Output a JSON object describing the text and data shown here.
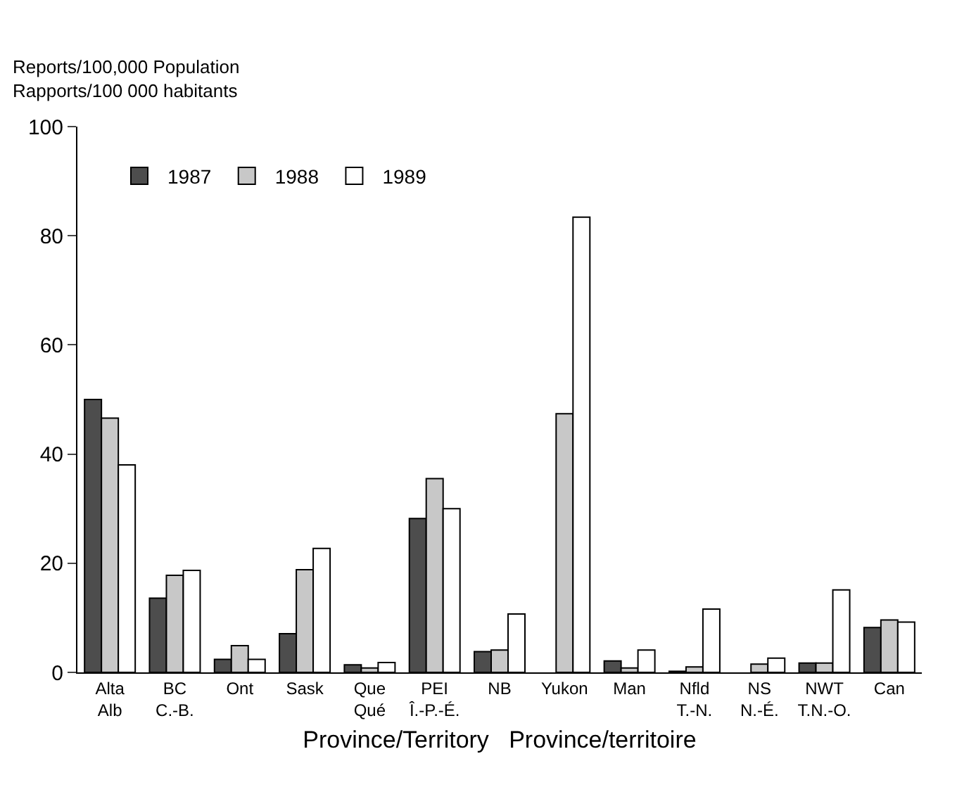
{
  "chart_data": {
    "type": "bar",
    "ylabel": "Reports/100,000 Population\nRapports/100 000 habitants",
    "xlabel": "Province/Territory   Province/territoire",
    "categories": [
      "Alta\nAlb",
      "BC\nC.-B.",
      "Ont",
      "Sask",
      "Que\nQué",
      "PEI\nÎ.-P.-É.",
      "NB",
      "Yukon",
      "Man",
      "Nfld\nT.-N.",
      "NS\nN.-É.",
      "NWT\nT.N.-O.",
      "Can"
    ],
    "series": [
      {
        "name": "1987",
        "color": "#4d4d4d",
        "values": [
          50.0,
          13.6,
          2.4,
          7.1,
          1.4,
          28.2,
          3.8,
          null,
          2.1,
          0.2,
          null,
          1.7,
          8.2
        ]
      },
      {
        "name": "1988",
        "color": "#c8c8c8",
        "values": [
          46.6,
          17.8,
          4.9,
          18.8,
          0.8,
          35.5,
          4.1,
          47.4,
          0.8,
          1.0,
          1.5,
          1.7,
          9.6
        ]
      },
      {
        "name": "1989",
        "color": "#ffffff",
        "values": [
          38.0,
          18.7,
          2.4,
          22.7,
          1.8,
          30.0,
          10.7,
          83.4,
          4.1,
          11.6,
          2.6,
          15.1,
          9.2
        ]
      }
    ],
    "ylim": [
      0,
      100
    ],
    "yticks": [
      0,
      20,
      40,
      60,
      80,
      100
    ],
    "legend": "top left"
  }
}
